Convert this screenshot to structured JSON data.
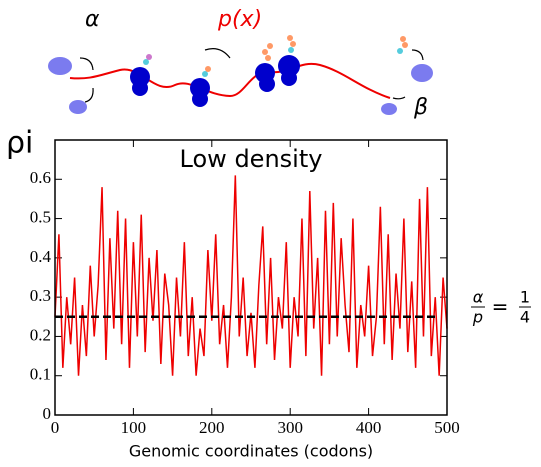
{
  "chart_data": {
    "type": "line",
    "title": "Low density",
    "y_label": "ρi",
    "x_label": "Genomic coordinates (codons)",
    "schematic": {
      "entry": "α",
      "rate": "p(x)",
      "exit": "β"
    },
    "ratio_label": {
      "numerator": "α",
      "denominator": "p",
      "equals": "=",
      "value_numerator": "1",
      "value_denominator": "4"
    },
    "reference_line": 0.25,
    "xlim": [
      0,
      500
    ],
    "xticks": [
      0,
      100,
      200,
      300,
      400,
      500
    ],
    "ylim": [
      0,
      0.7
    ],
    "yticks": [
      0,
      0.1,
      0.2,
      0.3,
      0.4,
      0.5,
      0.6
    ],
    "x": [
      0,
      5,
      10,
      15,
      20,
      25,
      30,
      35,
      40,
      45,
      50,
      55,
      60,
      65,
      70,
      75,
      80,
      85,
      90,
      95,
      100,
      105,
      110,
      115,
      120,
      125,
      130,
      135,
      140,
      145,
      150,
      155,
      160,
      165,
      170,
      175,
      180,
      185,
      190,
      195,
      200,
      205,
      210,
      215,
      220,
      225,
      230,
      235,
      240,
      245,
      250,
      255,
      260,
      265,
      270,
      275,
      280,
      285,
      290,
      295,
      300,
      305,
      310,
      315,
      320,
      325,
      330,
      335,
      340,
      345,
      350,
      355,
      360,
      365,
      370,
      375,
      380,
      385,
      390,
      395,
      400,
      405,
      410,
      415,
      420,
      425,
      430,
      435,
      440,
      445,
      450,
      455,
      460,
      465,
      470,
      475,
      480,
      485,
      490,
      495,
      500
    ],
    "series": [
      {
        "name": "density",
        "color": "#ee0000",
        "values": [
          0.25,
          0.46,
          0.12,
          0.3,
          0.18,
          0.35,
          0.1,
          0.28,
          0.15,
          0.38,
          0.2,
          0.33,
          0.58,
          0.14,
          0.45,
          0.22,
          0.52,
          0.18,
          0.5,
          0.12,
          0.44,
          0.2,
          0.51,
          0.16,
          0.4,
          0.24,
          0.42,
          0.13,
          0.36,
          0.28,
          0.1,
          0.35,
          0.2,
          0.44,
          0.15,
          0.3,
          0.1,
          0.22,
          0.15,
          0.42,
          0.24,
          0.46,
          0.18,
          0.28,
          0.12,
          0.3,
          0.61,
          0.2,
          0.35,
          0.15,
          0.26,
          0.12,
          0.33,
          0.48,
          0.18,
          0.4,
          0.14,
          0.3,
          0.22,
          0.44,
          0.12,
          0.3,
          0.2,
          0.5,
          0.15,
          0.57,
          0.22,
          0.4,
          0.1,
          0.52,
          0.18,
          0.54,
          0.2,
          0.45,
          0.28,
          0.16,
          0.5,
          0.12,
          0.28,
          0.2,
          0.38,
          0.15,
          0.25,
          0.53,
          0.18,
          0.46,
          0.14,
          0.36,
          0.22,
          0.5,
          0.16,
          0.34,
          0.12,
          0.55,
          0.2,
          0.58,
          0.15,
          0.3,
          0.1,
          0.35,
          0.22
        ]
      }
    ]
  }
}
